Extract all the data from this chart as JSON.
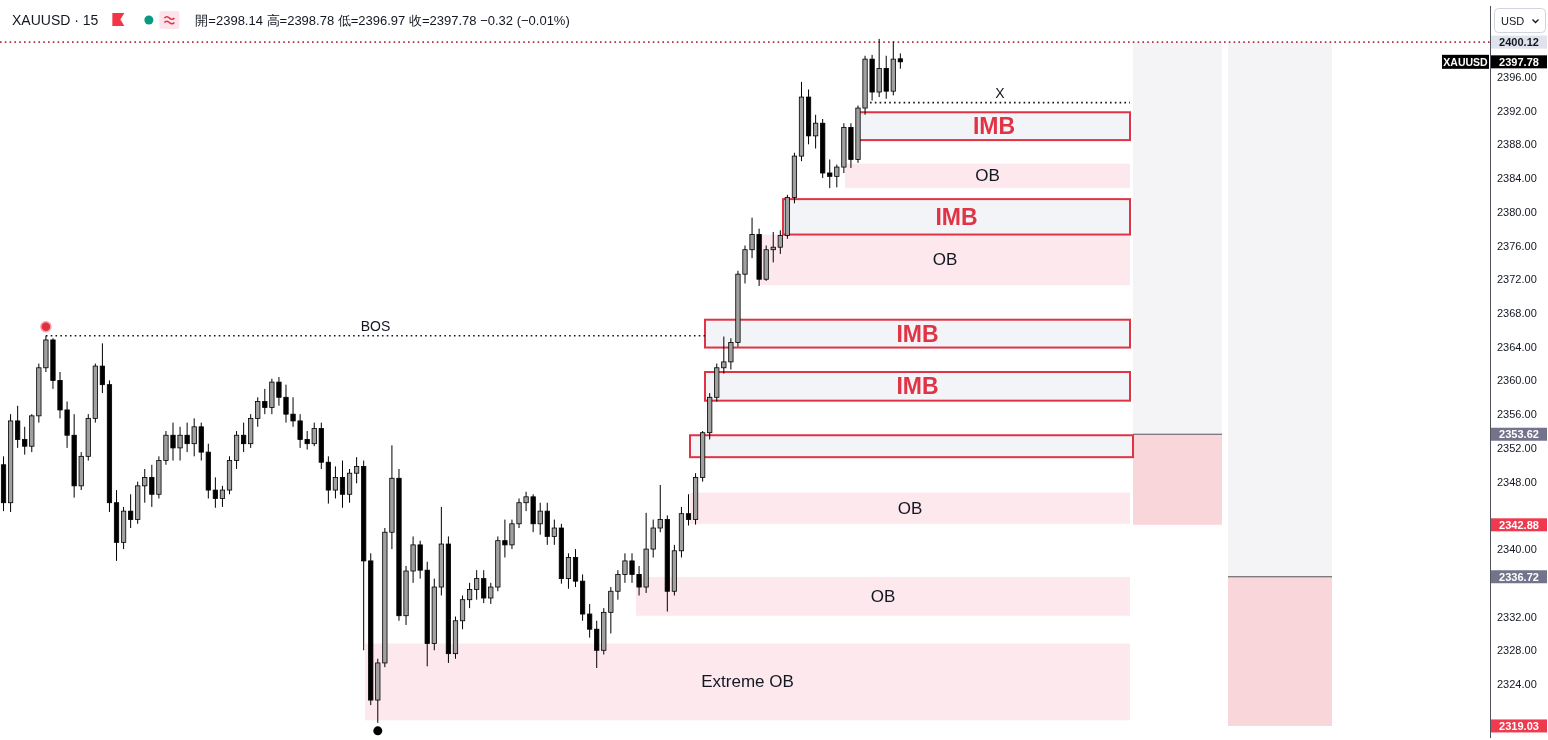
{
  "chart_data": {
    "type": "candlestick",
    "title": "XAUUSD · 15",
    "subtitle": "開=2398.14 高=2398.78 低=2396.97 收=2397.78 −0.32 (−0.01%)",
    "ylabel": "USD",
    "categories": [
      null,
      null,
      null,
      null,
      null,
      null,
      null,
      null,
      null,
      null,
      null,
      null,
      null,
      null,
      null,
      null,
      null,
      null,
      null,
      null,
      null,
      null,
      null,
      null,
      null,
      null,
      null,
      null,
      null,
      null,
      null,
      null,
      null,
      null,
      null,
      null,
      null,
      null,
      null,
      null,
      null,
      null,
      null,
      null,
      null,
      null,
      null,
      null,
      null,
      null,
      null,
      null,
      null,
      null,
      null,
      null,
      null,
      null,
      null,
      null,
      null,
      null,
      null,
      null,
      null,
      null,
      null,
      null,
      null,
      null,
      null,
      null,
      null,
      null,
      null,
      null,
      null,
      null,
      null,
      null,
      null,
      null,
      null,
      null,
      null,
      null,
      null,
      null,
      null,
      null,
      null,
      null,
      null,
      null,
      null,
      null,
      null,
      null,
      null,
      null,
      null,
      null,
      null,
      null,
      null,
      null,
      null,
      null,
      null,
      null,
      null,
      null,
      null,
      null,
      null,
      null,
      null,
      null,
      null,
      null,
      null,
      null,
      null,
      null,
      null,
      null,
      null,
      null,
      null,
      null,
      null,
      null,
      null,
      null,
      null,
      null,
      null,
      null,
      null,
      null,
      null,
      null,
      null,
      null,
      null,
      null,
      null,
      null,
      null,
      null,
      null,
      null,
      null,
      null,
      null,
      null,
      null,
      null,
      null,
      null,
      null,
      null,
      null,
      null,
      null,
      null,
      null,
      null,
      null,
      null,
      null,
      null,
      null,
      null,
      null,
      null,
      null,
      null,
      null,
      null,
      null,
      null,
      null,
      null,
      null,
      null,
      null,
      null,
      null,
      null,
      null,
      null,
      null,
      null,
      null,
      null,
      null,
      null,
      null,
      null,
      null,
      null,
      null,
      null,
      null,
      null,
      null,
      null,
      null,
      null,
      null
    ],
    "ohlc": [
      [
        2350,
        2351,
        2344.5,
        2345.5
      ],
      [
        2345.5,
        2356,
        2344.4,
        2355.2
      ],
      [
        2355.2,
        2357,
        2352,
        2353
      ],
      [
        2353,
        2354.5,
        2351.2,
        2352.2
      ],
      [
        2352.2,
        2356,
        2351.5,
        2355.8
      ],
      [
        2355.8,
        2362,
        2355,
        2361.5
      ],
      [
        2361.5,
        2365.3,
        2361,
        2364.8
      ],
      [
        2364.8,
        2365,
        2359,
        2360
      ],
      [
        2360,
        2361,
        2355.5,
        2356.5
      ],
      [
        2356.5,
        2357.5,
        2352,
        2353.5
      ],
      [
        2353.5,
        2356,
        2346.1,
        2347.5
      ],
      [
        2347.5,
        2351.5,
        2347,
        2351
      ],
      [
        2351,
        2356,
        2350.5,
        2355.5
      ],
      [
        2355.5,
        2362,
        2355,
        2361.7
      ],
      [
        2361.7,
        2364.4,
        2358.5,
        2359.5
      ],
      [
        2359.5,
        2360,
        2344.4,
        2345.5
      ],
      [
        2345.5,
        2347,
        2338.6,
        2340.8
      ],
      [
        2340.8,
        2345,
        2340,
        2344.5
      ],
      [
        2344.5,
        2346.5,
        2342.5,
        2343.5
      ],
      [
        2343.5,
        2348,
        2343,
        2347.5
      ],
      [
        2347.5,
        2349.5,
        2345.5,
        2348.5
      ],
      [
        2348.5,
        2350,
        2345,
        2346.5
      ],
      [
        2346.5,
        2351,
        2346,
        2350.5
      ],
      [
        2350.5,
        2354,
        2350,
        2353.5
      ],
      [
        2353.5,
        2355,
        2350.5,
        2352
      ],
      [
        2352,
        2354.5,
        2350.5,
        2353.5
      ],
      [
        2353.5,
        2355,
        2351.5,
        2352.5
      ],
      [
        2352.5,
        2355.5,
        2351,
        2354.5
      ],
      [
        2354.5,
        2355,
        2350.5,
        2351.5
      ],
      [
        2351.5,
        2352.5,
        2346,
        2347
      ],
      [
        2347,
        2348.5,
        2344.9,
        2346
      ],
      [
        2346,
        2347.5,
        2345,
        2347
      ],
      [
        2347,
        2351,
        2346.5,
        2350.5
      ],
      [
        2350.5,
        2354,
        2349.5,
        2353.5
      ],
      [
        2353.5,
        2355,
        2351.5,
        2352.5
      ],
      [
        2352.5,
        2356,
        2352,
        2355.5
      ],
      [
        2355.5,
        2358,
        2354.5,
        2357.5
      ],
      [
        2357.5,
        2359,
        2356,
        2356.8
      ],
      [
        2356.8,
        2360.2,
        2356,
        2359.8
      ],
      [
        2359.8,
        2360.4,
        2357,
        2358
      ],
      [
        2358,
        2359.5,
        2355,
        2356
      ],
      [
        2356,
        2358,
        2354.5,
        2355.2
      ],
      [
        2355.2,
        2356,
        2352,
        2353
      ],
      [
        2353,
        2354,
        2351.8,
        2352.5
      ],
      [
        2352.5,
        2355,
        2352.2,
        2354.3
      ],
      [
        2354.3,
        2355,
        2349.5,
        2350.3
      ],
      [
        2350.3,
        2351,
        2345.4,
        2347
      ],
      [
        2347,
        2349.8,
        2346,
        2348.5
      ],
      [
        2348.5,
        2350.5,
        2344.9,
        2346.5
      ],
      [
        2346.5,
        2349.5,
        2345.5,
        2349
      ],
      [
        2349,
        2350.9,
        2347.8,
        2349.8
      ],
      [
        2349.8,
        2350.5,
        2328,
        2338.6
      ],
      [
        2338.6,
        2339.5,
        2321.5,
        2322.1
      ],
      [
        2322.1,
        2327,
        2319.4,
        2326.5
      ],
      [
        2326.5,
        2342.5,
        2326,
        2342
      ],
      [
        2342,
        2352.3,
        2340,
        2348.4
      ],
      [
        2348.4,
        2349.5,
        2331.5,
        2332.1
      ],
      [
        2332.1,
        2338,
        2331,
        2337.4
      ],
      [
        2337.4,
        2341.5,
        2336,
        2340.5
      ],
      [
        2340.5,
        2341,
        2336.5,
        2337.5
      ],
      [
        2337.5,
        2338.5,
        2326.1,
        2328.8
      ],
      [
        2328.8,
        2336.5,
        2328,
        2335.5
      ],
      [
        2335.5,
        2345,
        2334.5,
        2340.6
      ],
      [
        2340.6,
        2341.5,
        2326.5,
        2327.6
      ],
      [
        2327.6,
        2332,
        2327,
        2331.5
      ],
      [
        2331.5,
        2334.5,
        2330.5,
        2334
      ],
      [
        2334,
        2336,
        2333,
        2335.2
      ],
      [
        2335.2,
        2337.5,
        2334,
        2336.5
      ],
      [
        2336.5,
        2337.5,
        2333.6,
        2334.2
      ],
      [
        2334.2,
        2336,
        2333.5,
        2335.5
      ],
      [
        2335.5,
        2341.5,
        2335,
        2341
      ],
      [
        2341,
        2343.5,
        2339,
        2340.5
      ],
      [
        2340.5,
        2343.5,
        2340,
        2343
      ],
      [
        2343,
        2346,
        2342.5,
        2345.5
      ],
      [
        2345.5,
        2346.8,
        2344.5,
        2346.2
      ],
      [
        2346.2,
        2346.5,
        2342,
        2343
      ],
      [
        2343,
        2345.5,
        2341.7,
        2344.5
      ],
      [
        2344.5,
        2345.5,
        2340.5,
        2341.5
      ],
      [
        2341.5,
        2343.5,
        2340.5,
        2342.5
      ],
      [
        2342.5,
        2343,
        2335.9,
        2336.5
      ],
      [
        2336.5,
        2339.5,
        2335.3,
        2339
      ],
      [
        2339,
        2340,
        2335.5,
        2336.2
      ],
      [
        2336.2,
        2337,
        2331.5,
        2332.3
      ],
      [
        2332.3,
        2333.5,
        2329.5,
        2330.5
      ],
      [
        2330.5,
        2331.5,
        2325.9,
        2328
      ],
      [
        2328,
        2333,
        2327.5,
        2332.5
      ],
      [
        2332.5,
        2335.5,
        2330,
        2335
      ],
      [
        2335,
        2337.5,
        2334,
        2337
      ],
      [
        2337,
        2339.5,
        2336,
        2338.6
      ],
      [
        2338.6,
        2339.5,
        2336,
        2337
      ],
      [
        2337,
        2338,
        2334.5,
        2335.5
      ],
      [
        2335.5,
        2344.3,
        2334.8,
        2340
      ],
      [
        2340,
        2343.5,
        2339,
        2342.5
      ],
      [
        2342.5,
        2347.6,
        2342,
        2343.5
      ],
      [
        2343.5,
        2344,
        2332.6,
        2335
      ],
      [
        2335,
        2340.5,
        2334.5,
        2339.8
      ],
      [
        2339.8,
        2345,
        2339,
        2344.2
      ],
      [
        2344.2,
        2346.5,
        2342.8,
        2343.5
      ],
      [
        2343.5,
        2349,
        2342.9,
        2348.5
      ],
      [
        2348.5,
        2354,
        2348,
        2353.8
      ],
      [
        2353.8,
        2358.5,
        2353,
        2358
      ],
      [
        2358,
        2362,
        2357.5,
        2361.5
      ],
      [
        2361.5,
        2365.2,
        2360.8,
        2362.2
      ],
      [
        2362.2,
        2365,
        2361.3,
        2364.5
      ],
      [
        2364.5,
        2373,
        2364,
        2372.6
      ],
      [
        2372.6,
        2376,
        2371.5,
        2375.5
      ],
      [
        2375.5,
        2379.3,
        2374.5,
        2377.3
      ],
      [
        2377.3,
        2378,
        2371.2,
        2372
      ],
      [
        2372,
        2376,
        2371.8,
        2375.5
      ],
      [
        2375.5,
        2377.6,
        2374,
        2375.8
      ],
      [
        2375.8,
        2377.8,
        2375,
        2377.2
      ],
      [
        2377.2,
        2382,
        2376.8,
        2381.7
      ],
      [
        2381.7,
        2387,
        2381,
        2386.6
      ],
      [
        2386.6,
        2395.4,
        2386,
        2393.6
      ],
      [
        2393.6,
        2394.5,
        2388,
        2389
      ],
      [
        2389,
        2391.5,
        2387.5,
        2390.5
      ],
      [
        2390.5,
        2391,
        2384,
        2384.6
      ],
      [
        2384.6,
        2386.2,
        2382.8,
        2384.2
      ],
      [
        2384.2,
        2385.6,
        2382.9,
        2385.3
      ],
      [
        2385.3,
        2390.5,
        2384.6,
        2390
      ],
      [
        2390,
        2390.5,
        2385.2,
        2386.2
      ],
      [
        2386.2,
        2392.6,
        2385.8,
        2392.3
      ],
      [
        2392.3,
        2398.5,
        2391.5,
        2398.1
      ],
      [
        2398.1,
        2398.6,
        2393.2,
        2394.2
      ],
      [
        2394.2,
        2400.5,
        2393.6,
        2397
      ],
      [
        2397,
        2398.5,
        2393.4,
        2394.3
      ],
      [
        2394.3,
        2400.2,
        2393.8,
        2398.1
      ],
      [
        2398.14,
        2398.78,
        2396.97,
        2397.78
      ],
      null,
      null,
      null,
      null,
      null,
      null,
      null,
      null,
      null,
      null,
      null,
      null,
      null,
      null,
      null,
      null,
      null,
      null,
      null,
      null,
      null,
      null,
      null,
      null,
      null,
      null,
      null,
      null,
      null,
      null,
      null,
      null,
      null,
      null,
      null,
      null,
      null,
      null,
      null,
      null,
      null,
      null,
      null,
      null,
      null,
      null,
      null,
      null,
      null,
      null,
      null,
      null,
      null,
      null,
      null,
      null,
      null,
      null,
      null,
      null,
      null,
      null,
      null,
      null,
      null,
      null,
      null,
      null,
      null,
      null,
      null,
      null,
      null,
      null,
      null,
      null,
      null,
      null,
      null,
      null,
      null,
      null,
      null
    ],
    "colors": [
      "#000000",
      "#a0a0a0",
      "#000000",
      "#000000",
      "#a0a0a0",
      "#a0a0a0",
      "#a0a0a0",
      "#000000",
      "#000000",
      "#000000",
      "#000000",
      "#a0a0a0",
      "#a0a0a0",
      "#a0a0a0",
      "#000000",
      "#000000",
      "#000000",
      "#a0a0a0",
      "#000000",
      "#a0a0a0",
      "#a0a0a0",
      "#000000",
      "#a0a0a0",
      "#a0a0a0",
      "#000000",
      "#a0a0a0",
      "#000000",
      "#a0a0a0",
      "#000000",
      "#000000",
      "#000000",
      "#a0a0a0",
      "#a0a0a0",
      "#a0a0a0",
      "#000000",
      "#a0a0a0",
      "#a0a0a0",
      "#000000",
      "#a0a0a0",
      "#000000",
      "#000000",
      "#000000",
      "#000000",
      "#000000",
      "#a0a0a0",
      "#000000",
      "#000000",
      "#a0a0a0",
      "#000000",
      "#a0a0a0",
      "#a0a0a0",
      "#000000",
      "#000000",
      "#a0a0a0",
      "#a0a0a0",
      "#a0a0a0",
      "#000000",
      "#a0a0a0",
      "#a0a0a0",
      "#000000",
      "#000000",
      "#a0a0a0",
      "#a0a0a0",
      "#000000",
      "#a0a0a0",
      "#a0a0a0",
      "#a0a0a0",
      "#a0a0a0",
      "#000000",
      "#a0a0a0",
      "#a0a0a0",
      "#000000",
      "#a0a0a0",
      "#a0a0a0",
      "#a0a0a0",
      "#000000",
      "#a0a0a0",
      "#000000",
      "#a0a0a0",
      "#000000",
      "#a0a0a0",
      "#000000",
      "#000000",
      "#000000",
      "#000000",
      "#a0a0a0",
      "#a0a0a0",
      "#a0a0a0",
      "#a0a0a0",
      "#000000",
      "#000000",
      "#a0a0a0",
      "#a0a0a0",
      "#a0a0a0",
      "#000000",
      "#a0a0a0",
      "#a0a0a0",
      "#000000",
      "#a0a0a0",
      "#a0a0a0",
      "#a0a0a0",
      "#a0a0a0",
      "#a0a0a0",
      "#a0a0a0",
      "#a0a0a0",
      "#a0a0a0",
      "#a0a0a0",
      "#000000",
      "#a0a0a0",
      "#a0a0a0",
      "#a0a0a0",
      "#a0a0a0",
      "#a0a0a0",
      "#a0a0a0",
      "#000000",
      "#a0a0a0",
      "#000000",
      "#000000",
      "#a0a0a0",
      "#a0a0a0",
      "#000000",
      "#a0a0a0",
      "#a0a0a0",
      "#000000",
      "#a0a0a0",
      "#000000",
      "#a0a0a0",
      "#000000",
      null,
      null,
      null,
      null,
      null,
      null,
      null,
      null,
      null,
      null,
      null,
      null,
      null,
      null,
      null,
      null,
      null,
      null,
      null,
      null,
      null,
      null,
      null,
      null,
      null,
      null,
      null,
      null,
      null,
      null,
      null,
      null,
      null,
      null,
      null,
      null,
      null,
      null,
      null,
      null,
      null,
      null,
      null,
      null,
      null,
      null,
      null,
      null,
      null,
      null,
      null,
      null,
      null,
      null,
      null,
      null,
      null,
      null,
      null,
      null,
      null,
      null,
      null,
      null,
      null,
      null,
      null,
      null,
      null,
      null,
      null,
      null,
      null,
      null,
      null,
      null,
      null,
      null,
      null,
      null,
      null,
      null,
      null
    ],
    "ylim": [
      2317.6,
      2404.4
    ],
    "yticks": [
      {
        "value": 2319.03,
        "label": "2319.03"
      },
      {
        "value": 2324,
        "label": "2324.00"
      },
      {
        "value": 2328,
        "label": "2328.00"
      },
      {
        "value": 2332,
        "label": "2332.00"
      },
      {
        "value": 2336.72,
        "label": "2336.72"
      },
      {
        "value": 2340,
        "label": "2340.00"
      },
      {
        "value": 2342.88,
        "label": "2342.88"
      },
      {
        "value": 2348,
        "label": "2348.00"
      },
      {
        "value": 2352,
        "label": "2352.00"
      },
      {
        "value": 2353.62,
        "label": "2353.62"
      },
      {
        "value": 2356,
        "label": "2356.00"
      },
      {
        "value": 2360,
        "label": "2360.00"
      },
      {
        "value": 2364,
        "label": "2364.00"
      },
      {
        "value": 2368,
        "label": "2368.00"
      },
      {
        "value": 2372,
        "label": "2372.00"
      },
      {
        "value": 2376,
        "label": "2376.00"
      },
      {
        "value": 2380,
        "label": "2380.00"
      },
      {
        "value": 2384,
        "label": "2384.00"
      },
      {
        "value": 2388,
        "label": "2388.00"
      },
      {
        "value": 2392,
        "label": "2392.00"
      },
      {
        "value": 2396,
        "label": "2396.00"
      },
      {
        "value": 2397.78,
        "label": "2397.78"
      }
    ],
    "tick_labels": "y",
    "bands": [
      {
        "axis": "y",
        "from": 2388.5,
        "to": 2391.8,
        "label": "IMB",
        "color": "#e03345"
      },
      {
        "axis": "y",
        "from": 2382.8,
        "to": 2385.7,
        "label": "OB",
        "color": "#fde8ed"
      },
      {
        "axis": "y",
        "from": 2377.3,
        "to": 2381.5,
        "label": "IMB",
        "color": "#e03345"
      },
      {
        "axis": "y",
        "from": 2371.3,
        "to": 2377.3,
        "label": "OB",
        "color": "#fde8ed"
      },
      {
        "axis": "y",
        "from": 2363.9,
        "to": 2367.2,
        "label": "IMB",
        "color": "#e03345"
      },
      {
        "axis": "y",
        "from": 2357.6,
        "to": 2361.0,
        "label": "IMB",
        "color": "#e03345"
      },
      {
        "axis": "y",
        "from": 2350.9,
        "to": 2353.5,
        "color": "#e03345"
      },
      {
        "axis": "y",
        "from": 2343.0,
        "to": 2346.7,
        "label": "OB",
        "color": "#fde8ed"
      },
      {
        "axis": "y",
        "from": 2332.1,
        "to": 2336.7,
        "label": "OB",
        "color": "#fde8ed"
      },
      {
        "axis": "y",
        "from": 2319.7,
        "to": 2328.8,
        "label": "Extreme OB",
        "color": "#fde8ed"
      },
      {
        "axis": "y",
        "from": 2353.62,
        "to": 2400.12,
        "color": "#f4f4f6"
      },
      {
        "axis": "y",
        "from": 2342.88,
        "to": 2353.62,
        "color": "#f9d6da"
      },
      {
        "axis": "y",
        "from": 2336.72,
        "to": 2400.12,
        "color": "#f4f4f6"
      },
      {
        "axis": "y",
        "from": 2319.03,
        "to": 2336.72,
        "color": "#f9d6da"
      }
    ],
    "ref_lines": [
      {
        "axis": "y",
        "value": 2400.12,
        "label": "2400.12",
        "color": "#b2323f",
        "line_style": "dotted"
      },
      {
        "axis": "y",
        "value": 2365.3,
        "color": "#131722",
        "line_style": "dotted"
      },
      {
        "axis": "y",
        "value": 2392.94,
        "color": "#131722",
        "line_style": "dotted"
      }
    ],
    "annotations": [
      {
        "text": "BOS",
        "y": 2365.3
      },
      {
        "text": "X",
        "y": 2392.94
      },
      "XAUUSD"
    ]
  }
}
